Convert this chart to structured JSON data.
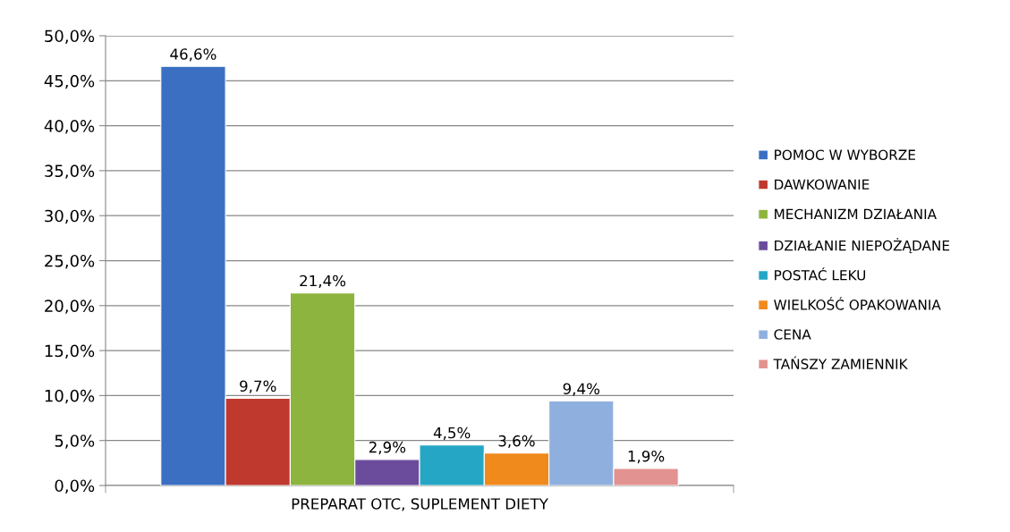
{
  "chart_data": {
    "type": "bar",
    "categories": [
      "PREPARAT OTC, SUPLEMENT DIETY"
    ],
    "series": [
      {
        "name": "POMOC W WYBORZE",
        "color": "#3a6fc2",
        "values": [
          46.6
        ],
        "value_labels": [
          "46,6%"
        ]
      },
      {
        "name": "DAWKOWANIE",
        "color": "#c0392f",
        "values": [
          9.7
        ],
        "value_labels": [
          "9,7%"
        ]
      },
      {
        "name": "MECHANIZM DZIAŁANIA",
        "color": "#8db43e",
        "values": [
          21.4
        ],
        "value_labels": [
          "21,4%"
        ]
      },
      {
        "name": "DZIAŁANIE NIEPOŻĄDANE",
        "color": "#6b4c9c",
        "values": [
          2.9
        ],
        "value_labels": [
          "2,9%"
        ]
      },
      {
        "name": "POSTAĆ LEKU",
        "color": "#25a6c4",
        "values": [
          4.5
        ],
        "value_labels": [
          "4,5%"
        ]
      },
      {
        "name": "WIELKOŚĆ OPAKOWANIA",
        "color": "#f08a1c",
        "values": [
          3.6
        ],
        "value_labels": [
          "3,6%"
        ]
      },
      {
        "name": "CENA",
        "color": "#8fb0de",
        "values": [
          9.4
        ],
        "value_labels": [
          "9,4%"
        ]
      },
      {
        "name": "TAŃSZY ZAMIENNIK",
        "color": "#e29290",
        "values": [
          1.9
        ],
        "value_labels": [
          "1,9%"
        ]
      }
    ],
    "ylim": [
      0,
      50
    ],
    "yticks": [
      {
        "value": 0,
        "label": "0,0%"
      },
      {
        "value": 5,
        "label": "5,0%"
      },
      {
        "value": 10,
        "label": "10,0%"
      },
      {
        "value": 15,
        "label": "15,0%"
      },
      {
        "value": 20,
        "label": "20,0%"
      },
      {
        "value": 25,
        "label": "25,0%"
      },
      {
        "value": 30,
        "label": "30,0%"
      },
      {
        "value": 35,
        "label": "35,0%"
      },
      {
        "value": 40,
        "label": "40,0%"
      },
      {
        "value": 45,
        "label": "45,0%"
      },
      {
        "value": 50,
        "label": "50,0%"
      }
    ],
    "grid": "y",
    "legend": "right"
  }
}
